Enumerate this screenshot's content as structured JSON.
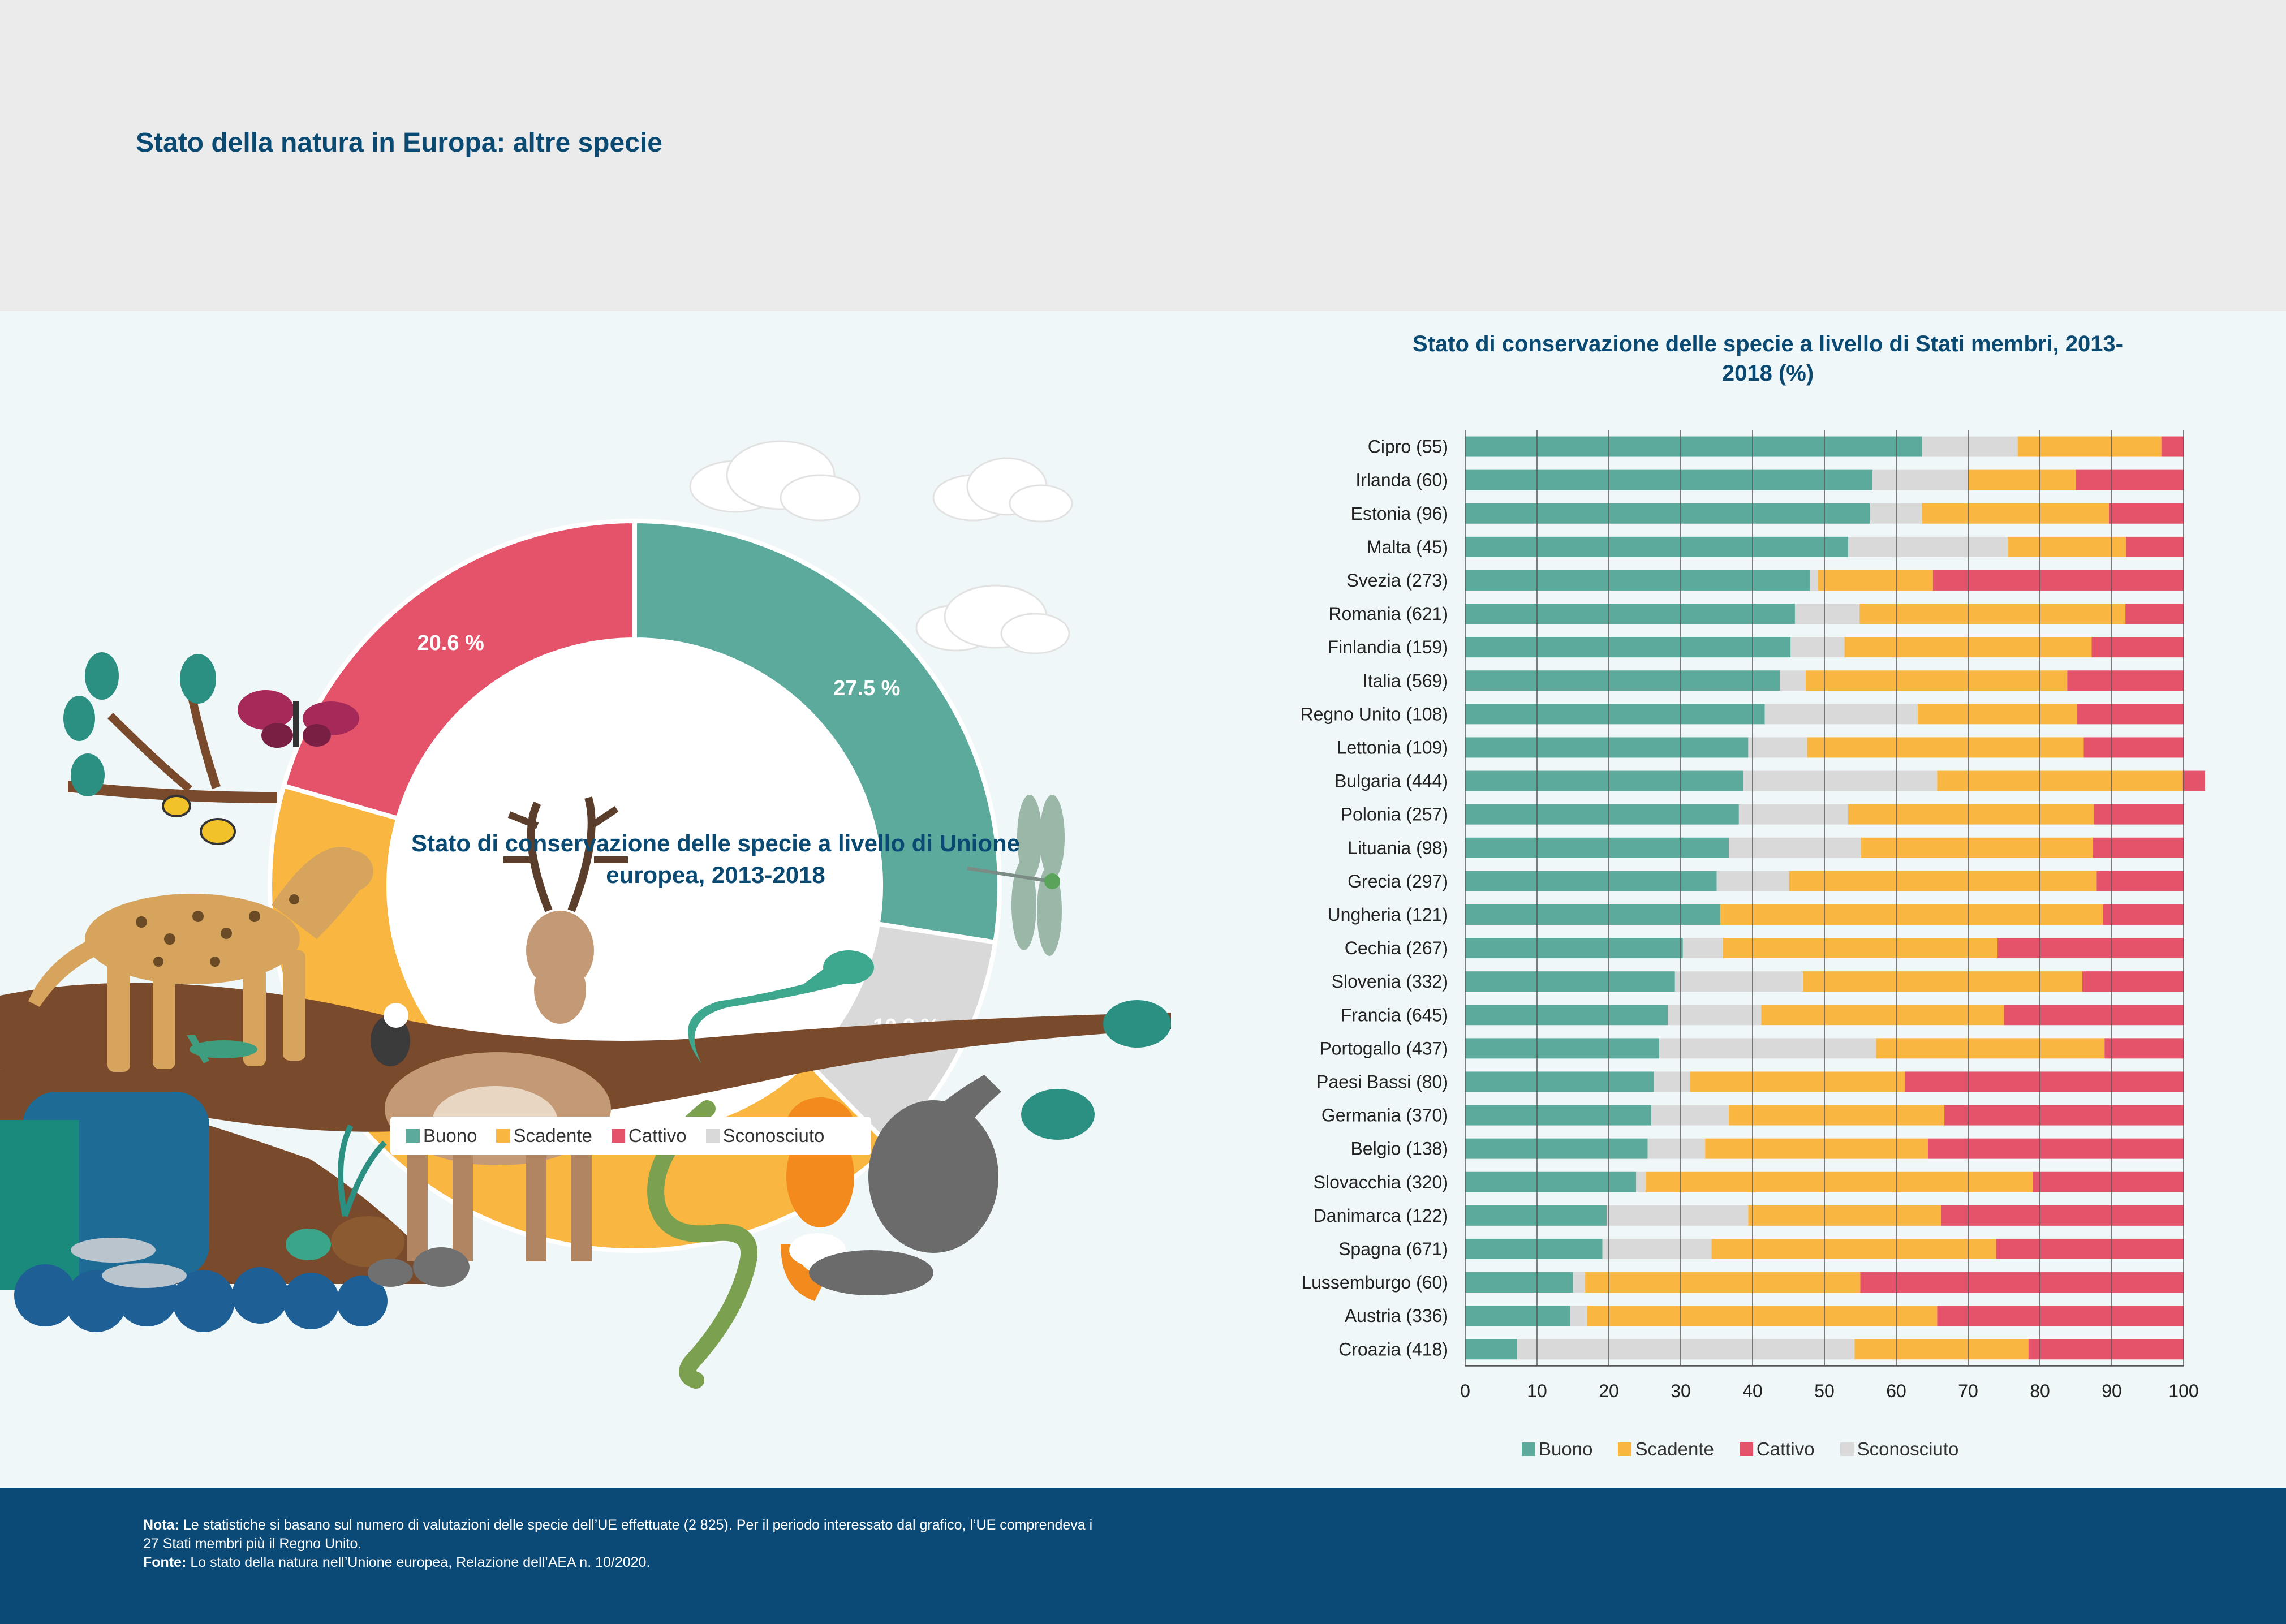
{
  "title": "Stato della natura in Europa: altre specie",
  "colors": {
    "buono": "#5baa9c",
    "scadente": "#f9b641",
    "cattivo": "#e5536b",
    "sconosciuto": "#d9d9d9",
    "navy": "#0b4a77"
  },
  "donut": {
    "center_label": "Stato di conservazione delle specie a livello di Unione europea, 2013-2018",
    "slices": [
      {
        "name": "Buono",
        "value": 27.5,
        "label": "27.5 %",
        "color": "#5baa9c"
      },
      {
        "name": "Sconosciuto",
        "value": 10.2,
        "label": "10.2 %",
        "color": "#d9d9d9"
      },
      {
        "name": "Scadente",
        "value": 41.8,
        "label": "41.8 %",
        "color": "#f9b641"
      },
      {
        "name": "Cattivo",
        "value": 20.6,
        "label": "20.6 %",
        "color": "#e5536b"
      }
    ],
    "legend": [
      "Buono",
      "Scadente",
      "Cattivo",
      "Sconosciuto"
    ]
  },
  "chart_data": {
    "type": "bar",
    "orientation": "horizontal",
    "stacked": true,
    "title": "Stato di conservazione delle specie a livello di Stati membri, 2013-2018 (%)",
    "categories": [
      "Cipro (55)",
      "Irlanda (60)",
      "Estonia (96)",
      "Malta (45)",
      "Svezia (273)",
      "Romania (621)",
      "Finlandia (159)",
      "Italia (569)",
      "Regno Unito (108)",
      "Lettonia (109)",
      "Bulgaria (444)",
      "Polonia (257)",
      "Lituania (98)",
      "Grecia (297)",
      "Ungheria (121)",
      "Cechia (267)",
      "Slovenia (332)",
      "Francia (645)",
      "Portogallo (437)",
      "Paesi Bassi (80)",
      "Germania (370)",
      "Belgio (138)",
      "Slovacchia (320)",
      "Danimarca (122)",
      "Spagna (671)",
      "Lussemburgo (60)",
      "Austria (336)",
      "Croazia (418)"
    ],
    "series": [
      {
        "name": "Buono",
        "color": "#5baa9c",
        "values": [
          63.6,
          56.7,
          56.3,
          53.3,
          48.0,
          45.9,
          45.3,
          43.8,
          41.7,
          39.4,
          38.7,
          38.1,
          36.7,
          35.0,
          35.5,
          30.3,
          29.2,
          28.2,
          27.0,
          26.3,
          25.9,
          25.4,
          23.8,
          19.7,
          19.1,
          15.0,
          14.6,
          7.2
        ]
      },
      {
        "name": "Sconosciuto",
        "color": "#d9d9d9",
        "values": [
          13.3,
          13.3,
          7.3,
          22.2,
          1.1,
          9.0,
          7.5,
          3.6,
          21.3,
          8.2,
          27.0,
          15.2,
          18.4,
          10.1,
          0.0,
          5.6,
          17.8,
          13.0,
          30.2,
          5.0,
          10.8,
          8.0,
          1.3,
          19.7,
          15.2,
          1.7,
          2.4,
          47.0
        ]
      },
      {
        "name": "Scadente",
        "color": "#f9b641",
        "values": [
          20.0,
          15.0,
          26.0,
          16.5,
          16.0,
          37.0,
          34.4,
          36.4,
          22.2,
          38.5,
          34.2,
          34.2,
          32.3,
          42.8,
          53.3,
          38.2,
          38.9,
          33.8,
          31.8,
          29.9,
          30.0,
          31.0,
          53.9,
          26.9,
          39.6,
          38.3,
          48.7,
          24.2
        ]
      },
      {
        "name": "Cattivo",
        "color": "#e5536b",
        "values": [
          3.1,
          15.0,
          10.4,
          8.0,
          34.9,
          8.1,
          12.8,
          16.2,
          14.8,
          13.9,
          3.1,
          12.5,
          12.6,
          12.1,
          11.2,
          25.9,
          14.1,
          25.0,
          11.0,
          38.8,
          33.3,
          35.6,
          21.0,
          33.7,
          26.1,
          45.0,
          34.3,
          21.6
        ]
      }
    ],
    "xlim": [
      0,
      100
    ],
    "xticks": [
      0,
      10,
      20,
      30,
      40,
      50,
      60,
      70,
      80,
      90,
      100
    ],
    "grid": true,
    "legend": [
      "Buono",
      "Scadente",
      "Cattivo",
      "Sconosciuto"
    ],
    "legend_position": "bottom"
  },
  "footer": {
    "nota_label": "Nota:",
    "nota_text": " Le statistiche si basano sul numero di valutazioni delle specie dell’UE effettuate (2 825). Per il periodo interessato dal grafico, l’UE comprendeva i 27 Stati membri più il Regno Unito.",
    "fonte_label": "Fonte:",
    "fonte_text": " Lo stato della natura nell’Unione europea, Relazione dell’AEA n. 10/2020."
  }
}
